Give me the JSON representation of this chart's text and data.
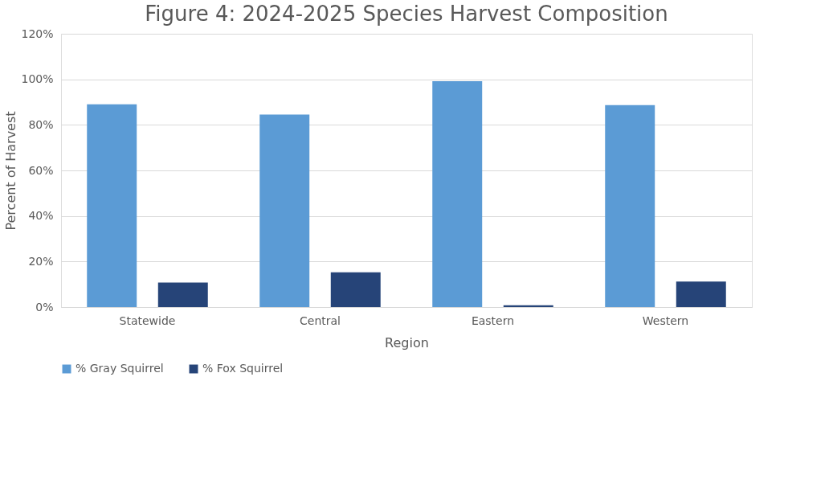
{
  "chart_data": {
    "type": "bar",
    "title": "Figure 4: 2024-2025 Species Harvest Composition",
    "xlabel": "Region",
    "ylabel": "Percent of  Harvest",
    "categories": [
      "Statewide",
      "Central",
      "Eastern",
      "Western"
    ],
    "series": [
      {
        "name": "% Gray Squirrel",
        "color": "#5b9bd5",
        "values": [
          89,
          84.5,
          99.2,
          88.7
        ]
      },
      {
        "name": "% Fox Squirrel",
        "color": "#264478",
        "values": [
          10.8,
          15.3,
          0.8,
          11.2
        ]
      }
    ],
    "ylim": [
      0,
      120
    ],
    "yticks": [
      {
        "value": 0,
        "label": "0%"
      },
      {
        "value": 20,
        "label": "20%"
      },
      {
        "value": 40,
        "label": "40%"
      },
      {
        "value": 60,
        "label": "60%"
      },
      {
        "value": 80,
        "label": "80%"
      },
      {
        "value": 100,
        "label": "100%"
      },
      {
        "value": 120,
        "label": "120%"
      }
    ],
    "grid": "y",
    "legend": "bottom"
  }
}
